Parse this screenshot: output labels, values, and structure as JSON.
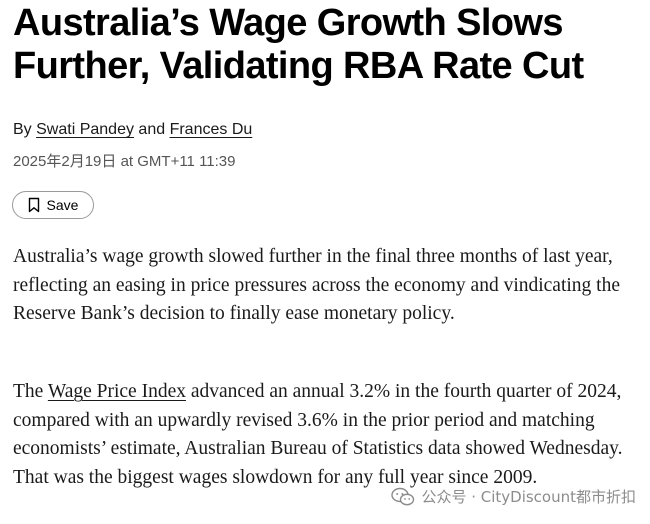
{
  "article": {
    "headline": "Australia’s Wage Growth Slows Further, Validating RBA Rate Cut",
    "byline": {
      "prefix": "By",
      "author1": "Swati Pandey",
      "conjunction": "and",
      "author2": "Frances Du"
    },
    "dateline": "2025年2月19日 at GMT+11 11:39",
    "save_label": "Save",
    "paragraph1": "Australia’s wage growth slowed further in the final three months of last year, reflecting an easing in price pressures across the economy and vindicating the Reserve Bank’s decision to finally ease monetary policy.",
    "paragraph2": {
      "lead": "The",
      "link": "Wage Price Index",
      "rest": "advanced an annual 3.2% in the fourth quarter of 2024, compared with an upwardly revised 3.6% in the prior period and matching economists’ estimate, Australian Bureau of Statistics data showed Wednesday. That was the biggest wages slowdown for any full year since 2009."
    }
  },
  "watermark": {
    "text": "公众号 · CityDiscount都市折扣",
    "icon": "wechat-icon"
  },
  "colors": {
    "text": "#1a1a1a",
    "muted": "#555555",
    "border": "#9a9a9a"
  }
}
